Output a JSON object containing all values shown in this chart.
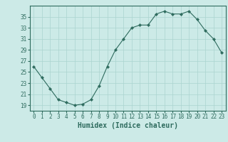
{
  "x": [
    0,
    1,
    2,
    3,
    4,
    5,
    6,
    7,
    8,
    9,
    10,
    11,
    12,
    13,
    14,
    15,
    16,
    17,
    18,
    19,
    20,
    21,
    22,
    23
  ],
  "y": [
    26,
    24,
    22,
    20,
    19.5,
    19,
    19.2,
    20,
    22.5,
    26,
    29,
    31,
    33,
    33.5,
    33.5,
    35.5,
    36,
    35.5,
    35.5,
    36,
    34.5,
    32.5,
    31,
    28.5
  ],
  "xlim": [
    -0.5,
    23.5
  ],
  "ylim": [
    18,
    37
  ],
  "yticks": [
    19,
    21,
    23,
    25,
    27,
    29,
    31,
    33,
    35
  ],
  "xticks": [
    0,
    1,
    2,
    3,
    4,
    5,
    6,
    7,
    8,
    9,
    10,
    11,
    12,
    13,
    14,
    15,
    16,
    17,
    18,
    19,
    20,
    21,
    22,
    23
  ],
  "xlabel": "Humidex (Indice chaleur)",
  "line_color": "#2e6b5e",
  "marker_color": "#2e6b5e",
  "bg_color": "#cceae7",
  "grid_color": "#aad4d0",
  "tick_label_size": 5.5,
  "xlabel_size": 7
}
